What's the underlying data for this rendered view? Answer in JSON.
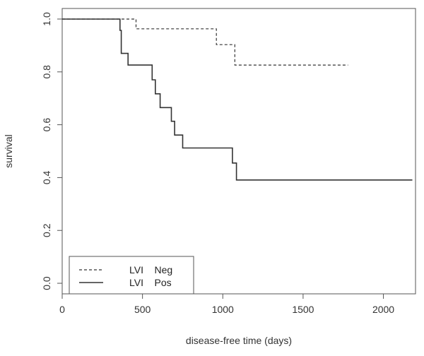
{
  "chart_data": {
    "type": "line",
    "subtype": "step",
    "title": "",
    "xlabel": "disease-free time (days)",
    "ylabel": "survival",
    "xlim": [
      0,
      2200
    ],
    "ylim": [
      -0.04,
      1.04
    ],
    "xticks": [
      0,
      500,
      1000,
      1500,
      2000
    ],
    "yticks": [
      0.0,
      0.2,
      0.4,
      0.6,
      0.8,
      1.0
    ],
    "xtick_labels": [
      "0",
      "500",
      "1000",
      "1500",
      "2000"
    ],
    "ytick_labels": [
      "0.0",
      "0.2",
      "0.4",
      "0.6",
      "0.8",
      "1.0"
    ],
    "grid": false,
    "legend_position": "bottom-left",
    "series": [
      {
        "name": "LVI    Neg",
        "line_style": "dashed",
        "color": "#333333",
        "x": [
          0,
          460,
          960,
          1075,
          1780
        ],
        "y": [
          1.0,
          0.963,
          0.903,
          0.826,
          0.826
        ]
      },
      {
        "name": "LVI    Pos",
        "line_style": "solid",
        "color": "#333333",
        "x": [
          0,
          360,
          368,
          410,
          560,
          580,
          610,
          680,
          700,
          750,
          980,
          1060,
          1085,
          2180
        ],
        "y": [
          1.0,
          0.957,
          0.87,
          0.826,
          0.77,
          0.717,
          0.665,
          0.613,
          0.561,
          0.512,
          0.512,
          0.455,
          0.391,
          0.391
        ]
      }
    ]
  }
}
